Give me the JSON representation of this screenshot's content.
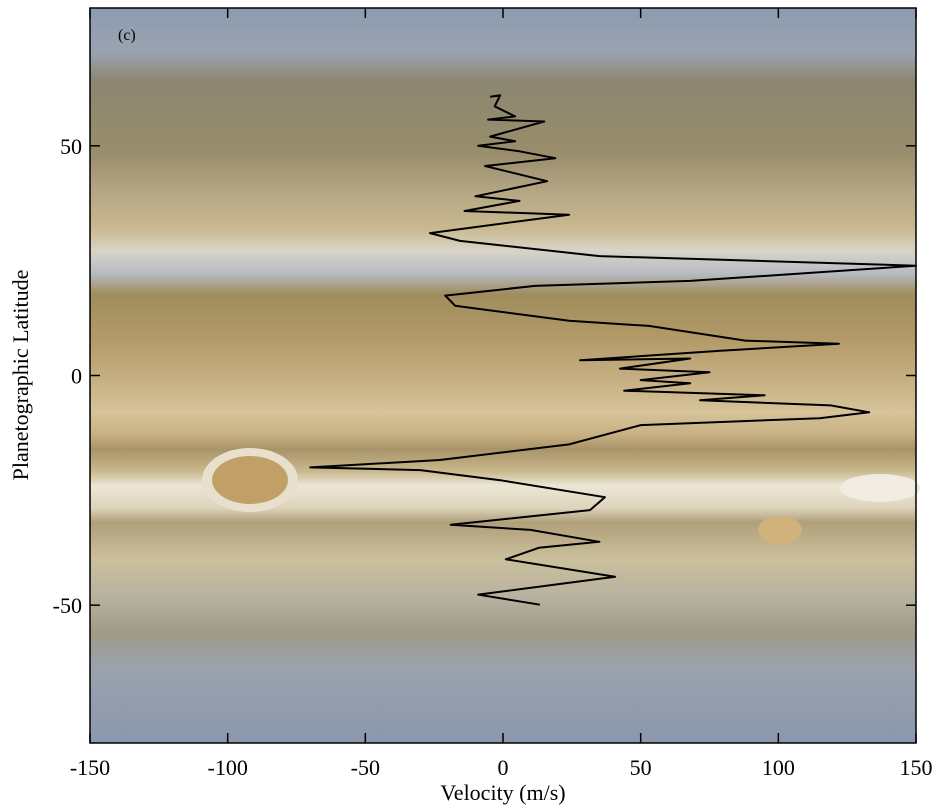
{
  "chart_data": {
    "type": "line",
    "annotation": "(c)",
    "xlabel": "Velocity (m/s)",
    "ylabel": "Planetographic Latitude",
    "xlim": [
      -150,
      150
    ],
    "ylim": [
      -80,
      80
    ],
    "xticks": [
      -150,
      -100,
      -50,
      0,
      50,
      100,
      150
    ],
    "yticks": [
      -50,
      0,
      50
    ],
    "color": "#000000",
    "x": [
      -4.7,
      -1,
      -3,
      4.4,
      -5.4,
      15,
      -4.7,
      4.4,
      -9,
      6,
      19,
      -6.5,
      16,
      -10,
      6,
      -14,
      24,
      -26.5,
      -15.6,
      35,
      150,
      68,
      11.6,
      -21,
      -17.4,
      24,
      53,
      88,
      122,
      79,
      28,
      68,
      42.5,
      75,
      50,
      68,
      44,
      95,
      71.6,
      119,
      133,
      115,
      50,
      24,
      -23,
      -70,
      -30,
      -1,
      37,
      31.6,
      -19,
      10,
      35,
      13,
      1,
      40.7,
      -9,
      13.4
    ],
    "values": [
      60.7,
      61,
      58.6,
      56.4,
      55.7,
      55.3,
      52,
      51,
      50,
      48.8,
      47.3,
      45.6,
      42.3,
      39,
      38,
      35.8,
      35,
      31,
      29.3,
      26,
      23.9,
      20.6,
      19.5,
      17.4,
      15.2,
      11.9,
      10.8,
      7.6,
      6.9,
      5.4,
      3.3,
      3.7,
      1.5,
      0.7,
      -1,
      -1.7,
      -3.3,
      -4.3,
      -5.4,
      -6.5,
      -8,
      -9.3,
      -10.8,
      -15,
      -18.4,
      -20,
      -20.6,
      -22.8,
      -26.5,
      -29.3,
      -32.5,
      -33.6,
      -36.2,
      -37.5,
      -40,
      -43.8,
      -47.7,
      -49.9
    ]
  }
}
